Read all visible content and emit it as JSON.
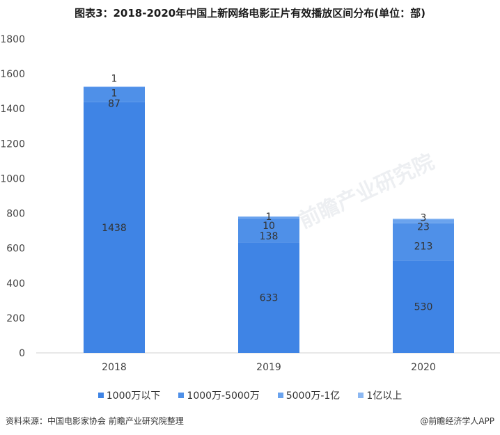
{
  "title": "图表3：2018-2020年中国上新网络电影正片有效播放区间分布(单位：部)",
  "footer": {
    "source": "资料来源：中国电影家协会 前瞻产业研究院整理",
    "credit": "@前瞻经济学人APP"
  },
  "watermark": "前瞻产业研究院",
  "colors": {
    "s1": "#3f84e5",
    "s2": "#4f90e8",
    "s3": "#6aa3ee",
    "s4": "#8cb8f2"
  },
  "chart_data": {
    "type": "bar",
    "stacked": true,
    "categories": [
      "2018",
      "2019",
      "2020"
    ],
    "series": [
      {
        "name": "1000万以下",
        "values": [
          1438,
          633,
          530
        ]
      },
      {
        "name": "1000万-5000万",
        "values": [
          87,
          138,
          213
        ]
      },
      {
        "name": "5000万-1亿",
        "values": [
          1,
          10,
          23
        ]
      },
      {
        "name": "1亿以上",
        "values": [
          1,
          1,
          3
        ]
      }
    ],
    "ylim": [
      0,
      1800
    ],
    "yticks": [
      "0",
      "200",
      "400",
      "600",
      "800",
      "1000",
      "1200",
      "1400",
      "1600",
      "1800"
    ],
    "grid": false,
    "legend": "bottom"
  }
}
